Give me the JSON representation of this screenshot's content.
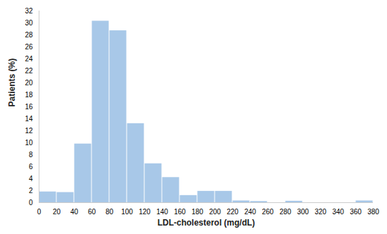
{
  "chart_data": {
    "type": "histogram",
    "bins": [
      0,
      20,
      40,
      60,
      80,
      100,
      120,
      140,
      160,
      180,
      200,
      220,
      240,
      260,
      280,
      300,
      320,
      340,
      360,
      380
    ],
    "values": [
      1.8,
      1.7,
      9.8,
      30.3,
      28.7,
      13.2,
      6.5,
      4.2,
      1.2,
      1.9,
      1.9,
      0.3,
      0.2,
      0.0,
      0.25,
      0.0,
      0.0,
      0.0,
      0.3
    ],
    "color": "#a8c8e8",
    "xlabel": "LDL-cholesterol (mg/dL)",
    "ylabel": "Patients (%)",
    "xlim": [
      0,
      380
    ],
    "ylim": [
      0,
      32
    ],
    "xticks": [
      0,
      20,
      40,
      60,
      80,
      100,
      120,
      140,
      160,
      180,
      200,
      220,
      240,
      260,
      280,
      300,
      320,
      340,
      360,
      380
    ],
    "yticks": [
      0,
      2,
      4,
      6,
      8,
      10,
      12,
      14,
      16,
      18,
      20,
      22,
      24,
      26,
      28,
      30,
      32
    ],
    "grid": false
  }
}
